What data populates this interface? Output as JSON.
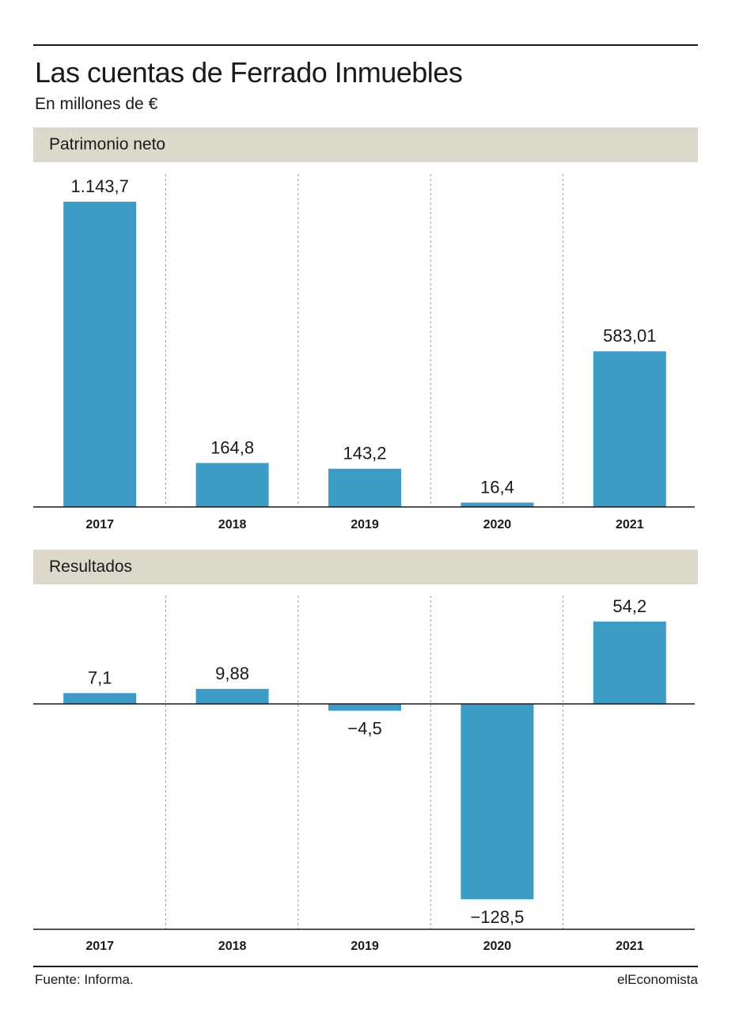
{
  "title": "Las cuentas de Ferrado Inmuebles",
  "subtitle": "En millones de €",
  "source": "Fuente: Informa.",
  "brand": "elEconomista",
  "colors": {
    "bar": "#3d9bc5",
    "band": "#dcd9cb",
    "grid": "#9a9a9a",
    "axis": "#1a1a1a"
  },
  "chart_data": [
    {
      "type": "bar",
      "title": "Patrimonio neto",
      "categories": [
        "2017",
        "2018",
        "2019",
        "2020",
        "2021"
      ],
      "values": [
        1143.7,
        164.8,
        143.2,
        16.4,
        583.01
      ],
      "labels": [
        "1.143,7",
        "164,8",
        "143,2",
        "16,4",
        "583,01"
      ],
      "grid": "vertical dashed separators"
    },
    {
      "type": "bar",
      "title": "Resultados",
      "categories": [
        "2017",
        "2018",
        "2019",
        "2020",
        "2021"
      ],
      "values": [
        7.1,
        9.88,
        -4.5,
        -128.5,
        54.2
      ],
      "labels": [
        "7,1",
        "9,88",
        "−4,5",
        "−128,5",
        "54,2"
      ],
      "grid": "vertical dashed separators"
    }
  ]
}
